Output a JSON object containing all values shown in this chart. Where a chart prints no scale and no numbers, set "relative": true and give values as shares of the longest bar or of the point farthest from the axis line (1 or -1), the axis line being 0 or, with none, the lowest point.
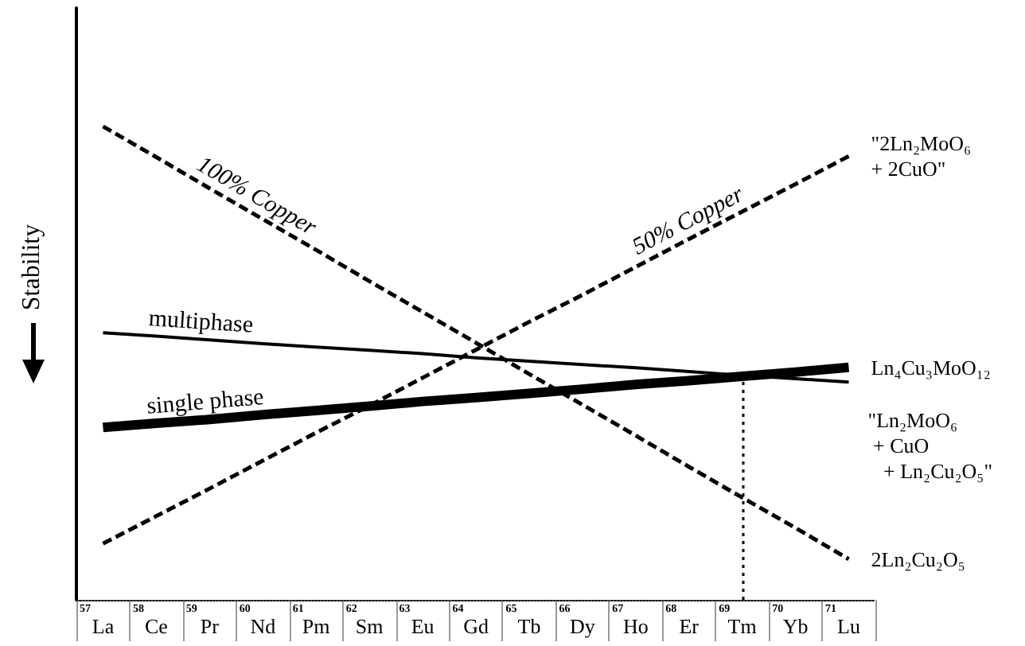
{
  "chart_data": {
    "type": "line",
    "relative": true,
    "ylabel": "Stability",
    "categories": [
      "La",
      "Ce",
      "Pr",
      "Nd",
      "Pm",
      "Sm",
      "Eu",
      "Gd",
      "Tb",
      "Dy",
      "Ho",
      "Er",
      "Tm",
      "Yb",
      "Lu"
    ],
    "series": [
      {
        "name": "100% Copper",
        "color": "#000000",
        "values": [
          1.0,
          0.935,
          0.869,
          0.804,
          0.739,
          0.673,
          0.608,
          0.543,
          0.477,
          0.412,
          0.347,
          0.281,
          0.216,
          0.152,
          0.086
        ],
        "line_style": "dashed"
      },
      {
        "name": "50% Copper",
        "color": "#000000",
        "values": [
          0.119,
          0.177,
          0.235,
          0.294,
          0.353,
          0.41,
          0.469,
          0.528,
          0.587,
          0.644,
          0.703,
          0.762,
          0.82,
          0.878,
          0.937
        ],
        "line_style": "dashed"
      },
      {
        "name": "multiphase",
        "color": "#000000",
        "values": [
          0.564,
          0.557,
          0.549,
          0.541,
          0.534,
          0.527,
          0.52,
          0.511,
          0.504,
          0.497,
          0.49,
          0.482,
          0.474,
          0.467,
          0.46
        ],
        "line_style": "solid"
      },
      {
        "name": "single phase",
        "color": "#000000",
        "values": [
          0.364,
          0.373,
          0.381,
          0.391,
          0.4,
          0.409,
          0.419,
          0.427,
          0.436,
          0.445,
          0.455,
          0.463,
          0.472,
          0.481,
          0.491
        ],
        "line_style": "solid"
      }
    ],
    "ref_lines": [
      {
        "axis": "x",
        "value": "Tm",
        "line_style": "dotted",
        "color": "#000000"
      }
    ],
    "annotations": [
      {
        "text": "\"2Ln₂MoO₆\n+ 2CuO\"",
        "x": "Lu",
        "y": 0.937
      },
      {
        "text": "Ln₄Cu₃MoO₁₂",
        "x": "Lu",
        "y": 0.491
      },
      "\"Ln₂MoO₆\n + CuO\n   + Ln₂Cu₂O₅\"",
      {
        "text": "2Ln₂Cu₂O₅",
        "x": "Lu",
        "y": 0.086
      },
      "57",
      "58",
      "59",
      "60",
      "61",
      "62",
      "63",
      "64",
      "65",
      "66",
      "67",
      "68",
      "69",
      "70",
      "71"
    ],
    "legend": false,
    "grid": false,
    "marker": "none"
  }
}
